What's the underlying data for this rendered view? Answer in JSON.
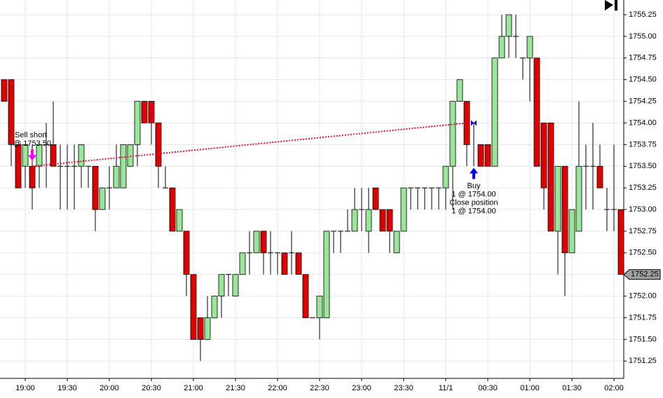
{
  "chart_data": {
    "type": "candlestick",
    "x": [
      -15,
      -10,
      -5,
      0,
      5,
      10,
      15,
      20,
      25,
      30,
      35,
      40,
      45,
      50,
      55,
      60,
      65,
      70,
      75,
      80,
      85,
      90,
      95,
      100,
      105,
      110,
      115,
      120,
      125,
      130,
      135,
      140,
      145,
      150,
      155,
      160,
      165,
      170,
      175,
      180,
      185,
      190,
      195,
      200,
      205,
      210,
      215,
      220,
      225,
      230,
      235,
      240,
      245,
      250,
      255,
      260,
      265,
      270,
      275,
      280,
      285,
      290,
      295,
      300,
      305,
      310,
      315,
      320,
      325,
      330,
      335,
      340,
      345,
      350,
      355,
      360,
      365,
      370,
      375,
      380,
      385,
      390,
      395,
      400,
      405,
      410,
      415,
      420,
      425
    ],
    "open": [
      1754.5,
      1754.5,
      1753.75,
      1753.5,
      1753.5,
      1753.5,
      1753.75,
      1753.75,
      1753.5,
      1753.5,
      1753.5,
      1753.5,
      1753.5,
      1753.5,
      1753.0,
      1753.25,
      1753.25,
      1753.25,
      1753.5,
      1753.75,
      1754.25,
      1754.25,
      1754.0,
      1753.25,
      1753.25,
      1752.75,
      1752.75,
      1752.25,
      1751.75,
      1751.5,
      1751.75,
      1752.0,
      1752.25,
      1752.0,
      1752.25,
      1752.5,
      1752.5,
      1752.75,
      1752.5,
      1752.5,
      1752.5,
      1752.5,
      1752.5,
      1752.25,
      1751.75,
      1751.75,
      1751.75,
      1752.75,
      1752.75,
      1752.75,
      1752.75,
      1753.0,
      1752.75,
      1753.25,
      1753.0,
      1753.0,
      1752.5,
      1752.75,
      1753.25,
      1753.25,
      1753.25,
      1753.25,
      1753.25,
      1753.25,
      1753.5,
      1754.25,
      1754.25,
      1754.0,
      1753.75,
      1753.75,
      1753.5,
      1754.75,
      1755.0,
      1755.0,
      1754.75,
      1754.75,
      1754.75,
      1754.0,
      1754.0,
      1752.75,
      1753.5,
      1752.5,
      1752.75,
      1753.5,
      1753.5,
      1753.5,
      1753.0,
      1753.0,
      1753.0
    ],
    "high": [
      1754.5,
      1754.5,
      1753.75,
      1753.75,
      1753.75,
      1753.75,
      1754.0,
      1754.25,
      1753.75,
      1753.75,
      1753.75,
      1753.75,
      1753.5,
      1753.5,
      1753.25,
      1753.5,
      1753.75,
      1753.75,
      1753.75,
      1754.25,
      1754.25,
      1754.25,
      1754.0,
      1753.5,
      1753.25,
      1753.0,
      1752.75,
      1752.25,
      1751.75,
      1752.0,
      1752.0,
      1752.25,
      1752.25,
      1752.25,
      1752.5,
      1752.75,
      1752.75,
      1752.75,
      1752.75,
      1752.5,
      1752.5,
      1752.75,
      1752.5,
      1752.25,
      1751.75,
      1752.0,
      1752.75,
      1752.75,
      1752.75,
      1753.0,
      1753.25,
      1753.25,
      1753.25,
      1753.25,
      1753.0,
      1753.0,
      1752.75,
      1753.25,
      1753.25,
      1753.25,
      1753.25,
      1753.25,
      1753.25,
      1753.5,
      1754.25,
      1754.5,
      1754.25,
      1754.0,
      1753.75,
      1753.75,
      1754.75,
      1755.25,
      1755.25,
      1755.25,
      1754.75,
      1755.0,
      1754.75,
      1754.0,
      1754.0,
      1753.5,
      1753.5,
      1753.0,
      1754.25,
      1753.75,
      1754.0,
      1753.75,
      1753.25,
      1753.75,
      1753.0
    ],
    "low": [
      1754.25,
      1753.5,
      1753.25,
      1753.25,
      1753.0,
      1753.25,
      1753.25,
      1753.5,
      1753.0,
      1753.0,
      1753.0,
      1753.25,
      1753.25,
      1752.75,
      1753.0,
      1753.0,
      1753.25,
      1753.25,
      1753.5,
      1753.5,
      1754.0,
      1753.75,
      1753.25,
      1753.25,
      1752.75,
      1752.75,
      1752.0,
      1751.5,
      1751.25,
      1751.5,
      1751.75,
      1751.75,
      1752.0,
      1752.0,
      1752.25,
      1752.25,
      1752.5,
      1752.25,
      1752.25,
      1752.25,
      1752.25,
      1752.25,
      1752.25,
      1751.75,
      1751.75,
      1751.5,
      1751.75,
      1752.5,
      1752.5,
      1752.75,
      1752.75,
      1752.75,
      1752.5,
      1753.0,
      1752.75,
      1752.5,
      1752.5,
      1752.75,
      1753.0,
      1753.0,
      1753.0,
      1753.0,
      1753.0,
      1753.0,
      1753.0,
      1754.25,
      1753.5,
      1753.5,
      1753.5,
      1753.5,
      1753.5,
      1754.75,
      1754.75,
      1754.75,
      1754.5,
      1754.25,
      1753.5,
      1753.0,
      1752.75,
      1752.25,
      1752.0,
      1752.5,
      1752.75,
      1753.0,
      1753.0,
      1753.25,
      1752.75,
      1752.75,
      1752.25
    ],
    "close": [
      1754.25,
      1753.75,
      1753.25,
      1753.75,
      1753.25,
      1753.75,
      1753.75,
      1753.5,
      1753.5,
      1753.5,
      1753.5,
      1753.75,
      1753.5,
      1753.0,
      1753.25,
      1753.25,
      1753.5,
      1753.75,
      1753.75,
      1754.25,
      1754.0,
      1754.0,
      1753.5,
      1753.25,
      1752.75,
      1753.0,
      1752.25,
      1751.5,
      1751.5,
      1751.75,
      1752.0,
      1752.25,
      1752.25,
      1752.25,
      1752.5,
      1752.5,
      1752.75,
      1752.5,
      1752.5,
      1752.5,
      1752.25,
      1752.5,
      1752.25,
      1751.75,
      1751.75,
      1752.0,
      1752.75,
      1752.75,
      1752.75,
      1752.75,
      1753.0,
      1753.0,
      1753.0,
      1753.0,
      1752.75,
      1752.75,
      1752.75,
      1753.25,
      1753.25,
      1753.25,
      1753.25,
      1753.25,
      1753.25,
      1753.5,
      1754.25,
      1754.5,
      1753.75,
      1754.0,
      1753.5,
      1753.5,
      1754.75,
      1755.0,
      1755.25,
      1755.0,
      1754.75,
      1755.0,
      1753.5,
      1753.25,
      1752.75,
      1753.5,
      1752.5,
      1753.0,
      1753.5,
      1753.5,
      1753.5,
      1753.25,
      1753.0,
      1753.0,
      1752.25
    ],
    "up_color": "#99e699",
    "down_color": "#e00000",
    "xlim": [
      -18,
      427
    ],
    "xticks": [
      {
        "value": 0,
        "label": "19:00"
      },
      {
        "value": 30,
        "label": "19:30"
      },
      {
        "value": 60,
        "label": "20:00"
      },
      {
        "value": 90,
        "label": "20:30"
      },
      {
        "value": 120,
        "label": "21:00"
      },
      {
        "value": 150,
        "label": "21:30"
      },
      {
        "value": 180,
        "label": "22:00"
      },
      {
        "value": 210,
        "label": "22:30"
      },
      {
        "value": 240,
        "label": "23:00"
      },
      {
        "value": 270,
        "label": "23:30"
      },
      {
        "value": 300,
        "label": "11/1"
      },
      {
        "value": 330,
        "label": "00:30"
      },
      {
        "value": 360,
        "label": "01:00"
      },
      {
        "value": 390,
        "label": "01:30"
      },
      {
        "value": 420,
        "label": "02:00"
      }
    ],
    "ylim": [
      1751.05,
      1755.42
    ],
    "yticks": [
      {
        "value": 1751.25,
        "label": "1751.25"
      },
      {
        "value": 1751.5,
        "label": "1751.50"
      },
      {
        "value": 1751.75,
        "label": "1751.75"
      },
      {
        "value": 1752,
        "label": "1752.00"
      },
      {
        "value": 1752.25,
        "label": "1752.25"
      },
      {
        "value": 1752.5,
        "label": "1752.50"
      },
      {
        "value": 1752.75,
        "label": "1752.75"
      },
      {
        "value": 1753,
        "label": "1753.00"
      },
      {
        "value": 1753.25,
        "label": "1753.25"
      },
      {
        "value": 1753.5,
        "label": "1753.50"
      },
      {
        "value": 1753.75,
        "label": "1753.75"
      },
      {
        "value": 1754,
        "label": "1754.00"
      },
      {
        "value": 1754.25,
        "label": "1754.25"
      },
      {
        "value": 1754.5,
        "label": "1754.50"
      },
      {
        "value": 1754.75,
        "label": "1754.75"
      },
      {
        "value": 1755,
        "label": "1755.00"
      },
      {
        "value": 1755.25,
        "label": "1755.25"
      }
    ],
    "grid": true,
    "last_price": {
      "value": 1752.25,
      "label": "1752.25"
    },
    "trades": [
      {
        "x": 5,
        "price": 1753.5,
        "color": "#ff00ff",
        "labels": [
          "Sell short",
          "@ 1753.50"
        ]
      },
      {
        "x": 320,
        "price": 1754.0,
        "color": "#0000ee",
        "labels": [
          "Buy",
          "1 @ 1754.00",
          "Close position",
          "1 @ 1754.00"
        ]
      }
    ],
    "trade_line_color": "#e0103c"
  }
}
